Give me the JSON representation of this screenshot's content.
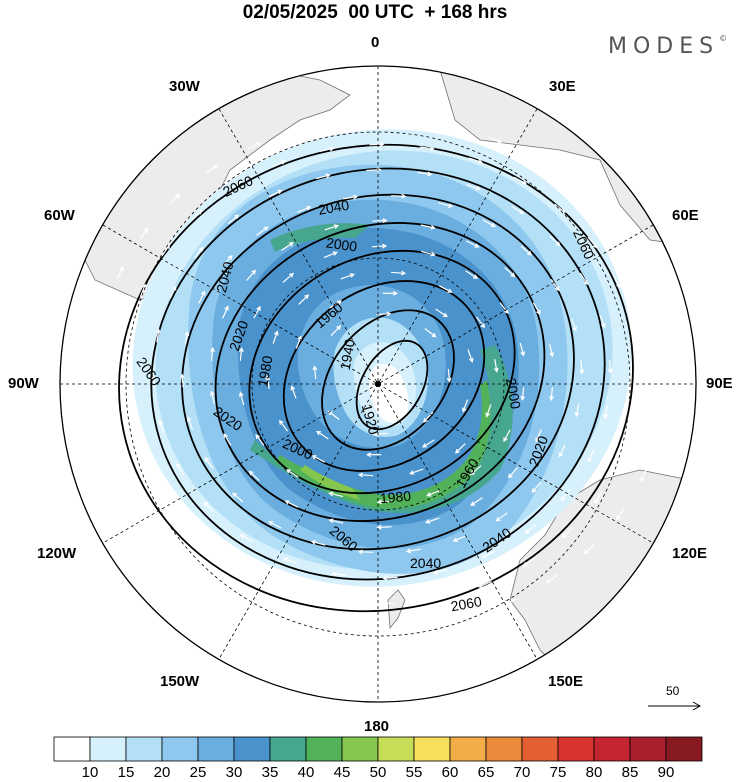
{
  "title": "02/05/2025  00 UTC  + 168 hrs",
  "brand": "MODES",
  "brand_mark": "©",
  "longitude_labels": {
    "lon_0": "0",
    "lon_30e": "30E",
    "lon_60e": "60E",
    "lon_90e": "90E",
    "lon_120e": "120E",
    "lon_150e": "150E",
    "lon_180": "180",
    "lon_150w": "150W",
    "lon_120w": "120W",
    "lon_90w": "90W",
    "lon_60w": "60W",
    "lon_30w": "30W"
  },
  "contour_labels": [
    "1920",
    "1940",
    "1960",
    "1980",
    "2000",
    "2020",
    "2040",
    "2060"
  ],
  "wind_reference": {
    "value": "50"
  },
  "colorbar": {
    "ticks": [
      "10",
      "15",
      "20",
      "25",
      "30",
      "35",
      "40",
      "45",
      "50",
      "55",
      "60",
      "65",
      "70",
      "75",
      "80",
      "85",
      "90"
    ],
    "colors": [
      "#ffffff",
      "#d6f0fc",
      "#b4e0f7",
      "#8ec8ee",
      "#6aaee0",
      "#4a92cc",
      "#46a78e",
      "#52b25a",
      "#84c64e",
      "#c6dd58",
      "#f7df5c",
      "#f2ad48",
      "#ec8a3c",
      "#e45f33",
      "#d8332f",
      "#c42530",
      "#a8202d",
      "#881a22"
    ]
  },
  "colors": {
    "land": "#ececec",
    "coast": "#707070",
    "contour": "#000000",
    "wind_vectors": "#ffffff"
  }
}
